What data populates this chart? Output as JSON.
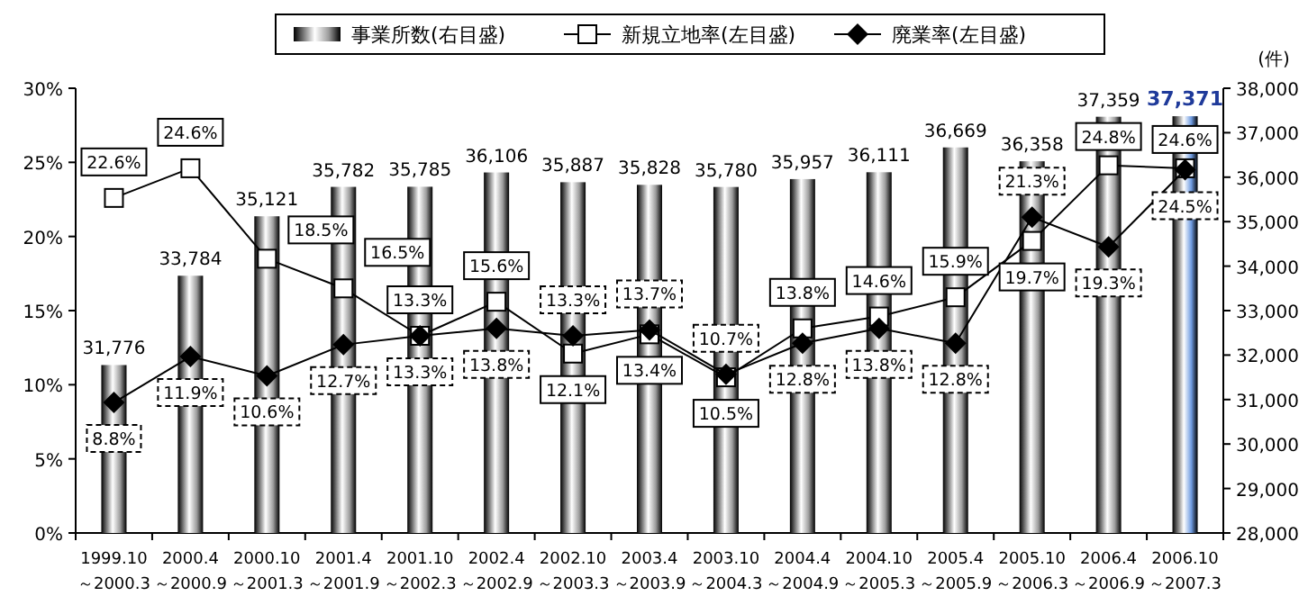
{
  "chart_data": {
    "type": "bar",
    "categories": [
      "1999.10\n～2000.3",
      "2000.4\n～2000.9",
      "2000.10\n～2001.3",
      "2001.4\n～2001.9",
      "2001.10\n～2002.3",
      "2002.4\n～2002.9",
      "2002.10\n～2003.3",
      "2003.4\n～2003.9",
      "2003.10\n～2004.3",
      "2004.4\n～2004.9",
      "2004.10\n～2005.3",
      "2005.4\n～2005.9",
      "2005.10\n～2006.3",
      "2006.4\n～2006.9",
      "2006.10\n～2007.3"
    ],
    "series": [
      {
        "name": "事業所数(右目盛)",
        "type": "bar",
        "axis": "y2",
        "colors": [
          "#9c9c9c",
          "#9c9c9c",
          "#9c9c9c",
          "#9c9c9c",
          "#9c9c9c",
          "#9c9c9c",
          "#9c9c9c",
          "#9c9c9c",
          "#9c9c9c",
          "#9c9c9c",
          "#9c9c9c",
          "#9c9c9c",
          "#9c9c9c",
          "#9c9c9c",
          "#6f9be0"
        ],
        "values": [
          31776,
          33784,
          35121,
          35782,
          35785,
          36106,
          35887,
          35828,
          35780,
          35957,
          36111,
          36669,
          36358,
          37359,
          37371
        ],
        "value_labels": [
          "31,776",
          "33,784",
          "35,121",
          "35,782",
          "35,785",
          "36,106",
          "35,887",
          "35,828",
          "35,780",
          "35,957",
          "36,111",
          "36,669",
          "36,358",
          "37,359",
          "37,371"
        ]
      },
      {
        "name": "新規立地率(左目盛)",
        "type": "line",
        "marker": "square",
        "color": "#000000",
        "values": [
          22.6,
          24.6,
          18.5,
          16.5,
          13.3,
          15.6,
          12.1,
          13.4,
          10.5,
          13.8,
          14.6,
          15.9,
          19.7,
          24.8,
          24.6
        ],
        "value_labels": [
          "22.6%",
          "24.6%",
          "18.5%",
          "16.5%",
          "13.3%",
          "15.6%",
          "12.1%",
          "13.4%",
          "10.5%",
          "13.8%",
          "14.6%",
          "15.9%",
          "19.7%",
          "24.8%",
          "24.6%"
        ]
      },
      {
        "name": "廃業率(左目盛)",
        "type": "line",
        "marker": "diamond",
        "color": "#000000",
        "values": [
          8.8,
          11.9,
          10.6,
          12.7,
          13.3,
          13.8,
          13.3,
          13.7,
          10.7,
          12.8,
          13.8,
          12.8,
          21.3,
          19.3,
          24.5
        ],
        "value_labels": [
          "8.8%",
          "11.9%",
          "10.6%",
          "12.7%",
          "13.3%",
          "13.8%",
          "13.3%",
          "13.7%",
          "10.7%",
          "12.8%",
          "13.8%",
          "12.8%",
          "21.3%",
          "19.3%",
          "24.5%"
        ]
      }
    ],
    "ylim": [
      0,
      30
    ],
    "yticks": [
      {
        "value": 0,
        "label": "0%"
      },
      {
        "value": 5,
        "label": "5%"
      },
      {
        "value": 10,
        "label": "10%"
      },
      {
        "value": 15,
        "label": "15%"
      },
      {
        "value": 20,
        "label": "20%"
      },
      {
        "value": 25,
        "label": "25%"
      },
      {
        "value": 30,
        "label": "30%"
      }
    ],
    "y2label": "(件)",
    "y2lim": [
      28000,
      38000
    ],
    "y2ticks": [
      {
        "value": 28000,
        "label": "28,000"
      },
      {
        "value": 29000,
        "label": "29,000"
      },
      {
        "value": 30000,
        "label": "30,000"
      },
      {
        "value": 31000,
        "label": "31,000"
      },
      {
        "value": 32000,
        "label": "32,000"
      },
      {
        "value": 33000,
        "label": "33,000"
      },
      {
        "value": 34000,
        "label": "34,000"
      },
      {
        "value": 35000,
        "label": "35,000"
      },
      {
        "value": 36000,
        "label": "36,000"
      },
      {
        "value": 37000,
        "label": "37,000"
      },
      {
        "value": 38000,
        "label": "38,000"
      }
    ],
    "legend": "top",
    "grid": false
  }
}
